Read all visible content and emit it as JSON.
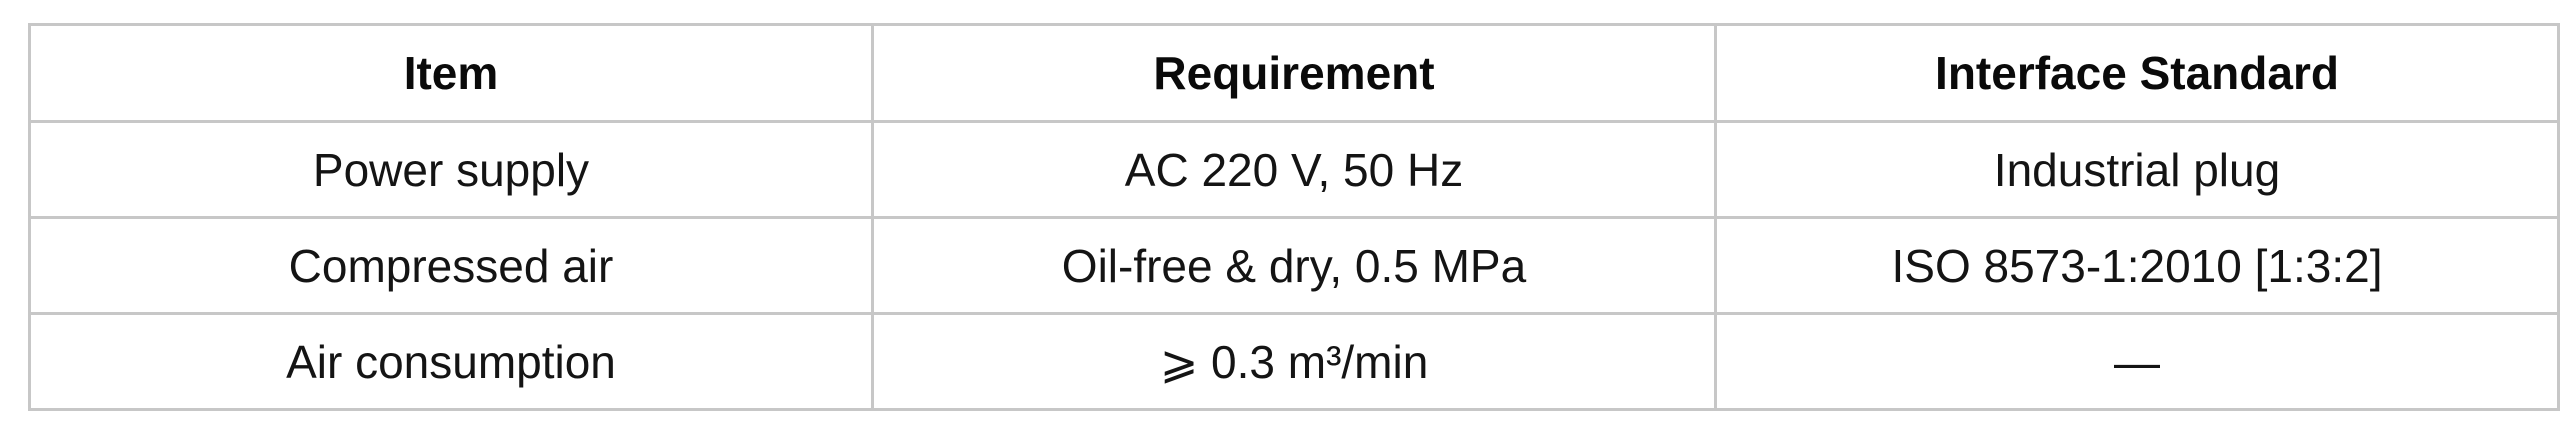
{
  "table": {
    "columns": [
      "Item",
      "Requirement",
      "Interface Standard"
    ],
    "rows": [
      [
        "Power supply",
        "AC 220 V, 50 Hz",
        "Industrial plug"
      ],
      [
        "Compressed air",
        "Oil-free & dry, 0.5 MPa",
        "ISO 8573-1:2010 [1:3:2]"
      ],
      [
        "Air consumption",
        "⩾ 0.3 m³/min",
        "—"
      ]
    ],
    "colors": {
      "background": "#ffffff",
      "border_outer": "#b5b5b5",
      "border_inner": "#c7c7c7",
      "header_text": "#0a0a0a",
      "body_text": "#141414"
    }
  }
}
